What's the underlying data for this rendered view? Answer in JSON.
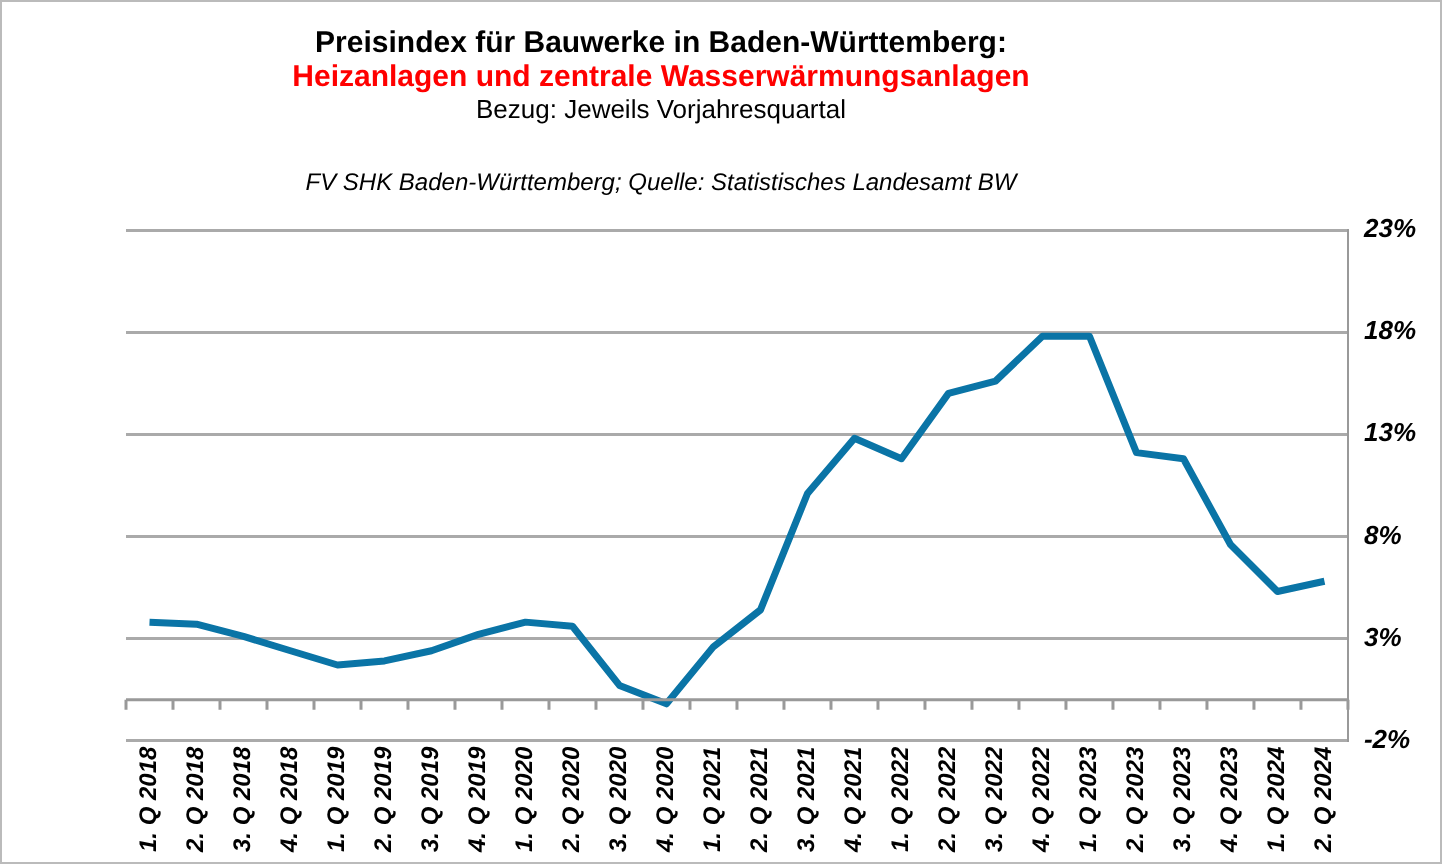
{
  "chart_data": {
    "type": "line",
    "title": "Preisindex für Bauwerke in Baden-Württemberg:",
    "subtitle": "Heizanlagen und zentrale Wasserwärmungsanlagen",
    "annotations": [
      "Bezug: Jeweils Vorjahresquartal",
      "FV SHK Baden-Württemberg; Quelle: Statistisches Landesamt BW"
    ],
    "categories": [
      "1. Q 2018",
      "2. Q 2018",
      "3. Q 2018",
      "4. Q 2018",
      "1. Q 2019",
      "2. Q 2019",
      "3. Q 2019",
      "4. Q 2019",
      "1. Q 2020",
      "2. Q 2020",
      "3. Q 2020",
      "4. Q 2020",
      "1. Q 2021",
      "2. Q 2021",
      "3. Q 2021",
      "4. Q 2021",
      "1. Q 2022",
      "2. Q 2022",
      "3. Q 2022",
      "4. Q 2022",
      "1. Q 2023",
      "2. Q 2023",
      "3. Q 2023",
      "4. Q 2023",
      "1. Q 2024",
      "2. Q 2024"
    ],
    "series": [
      {
        "color": "#0a74a6",
        "values": [
          3.8,
          3.7,
          3.1,
          2.4,
          1.7,
          1.9,
          2.4,
          3.2,
          3.8,
          3.6,
          0.7,
          -0.2,
          2.6,
          4.4,
          10.1,
          12.8,
          11.8,
          15.0,
          15.6,
          17.8,
          17.8,
          12.1,
          11.8,
          7.6,
          5.3,
          5.8
        ]
      }
    ],
    "ylim": [
      -2,
      23
    ],
    "yticks": [
      {
        "value": -2,
        "label": "-2%"
      },
      {
        "value": 3,
        "label": "3%"
      },
      {
        "value": 8,
        "label": "8%"
      },
      {
        "value": 13,
        "label": "13%"
      },
      {
        "value": 18,
        "label": "18%"
      },
      {
        "value": 23,
        "label": "23%"
      }
    ],
    "grid": "y",
    "legend": false,
    "marker": "none",
    "line_style": "solid"
  }
}
